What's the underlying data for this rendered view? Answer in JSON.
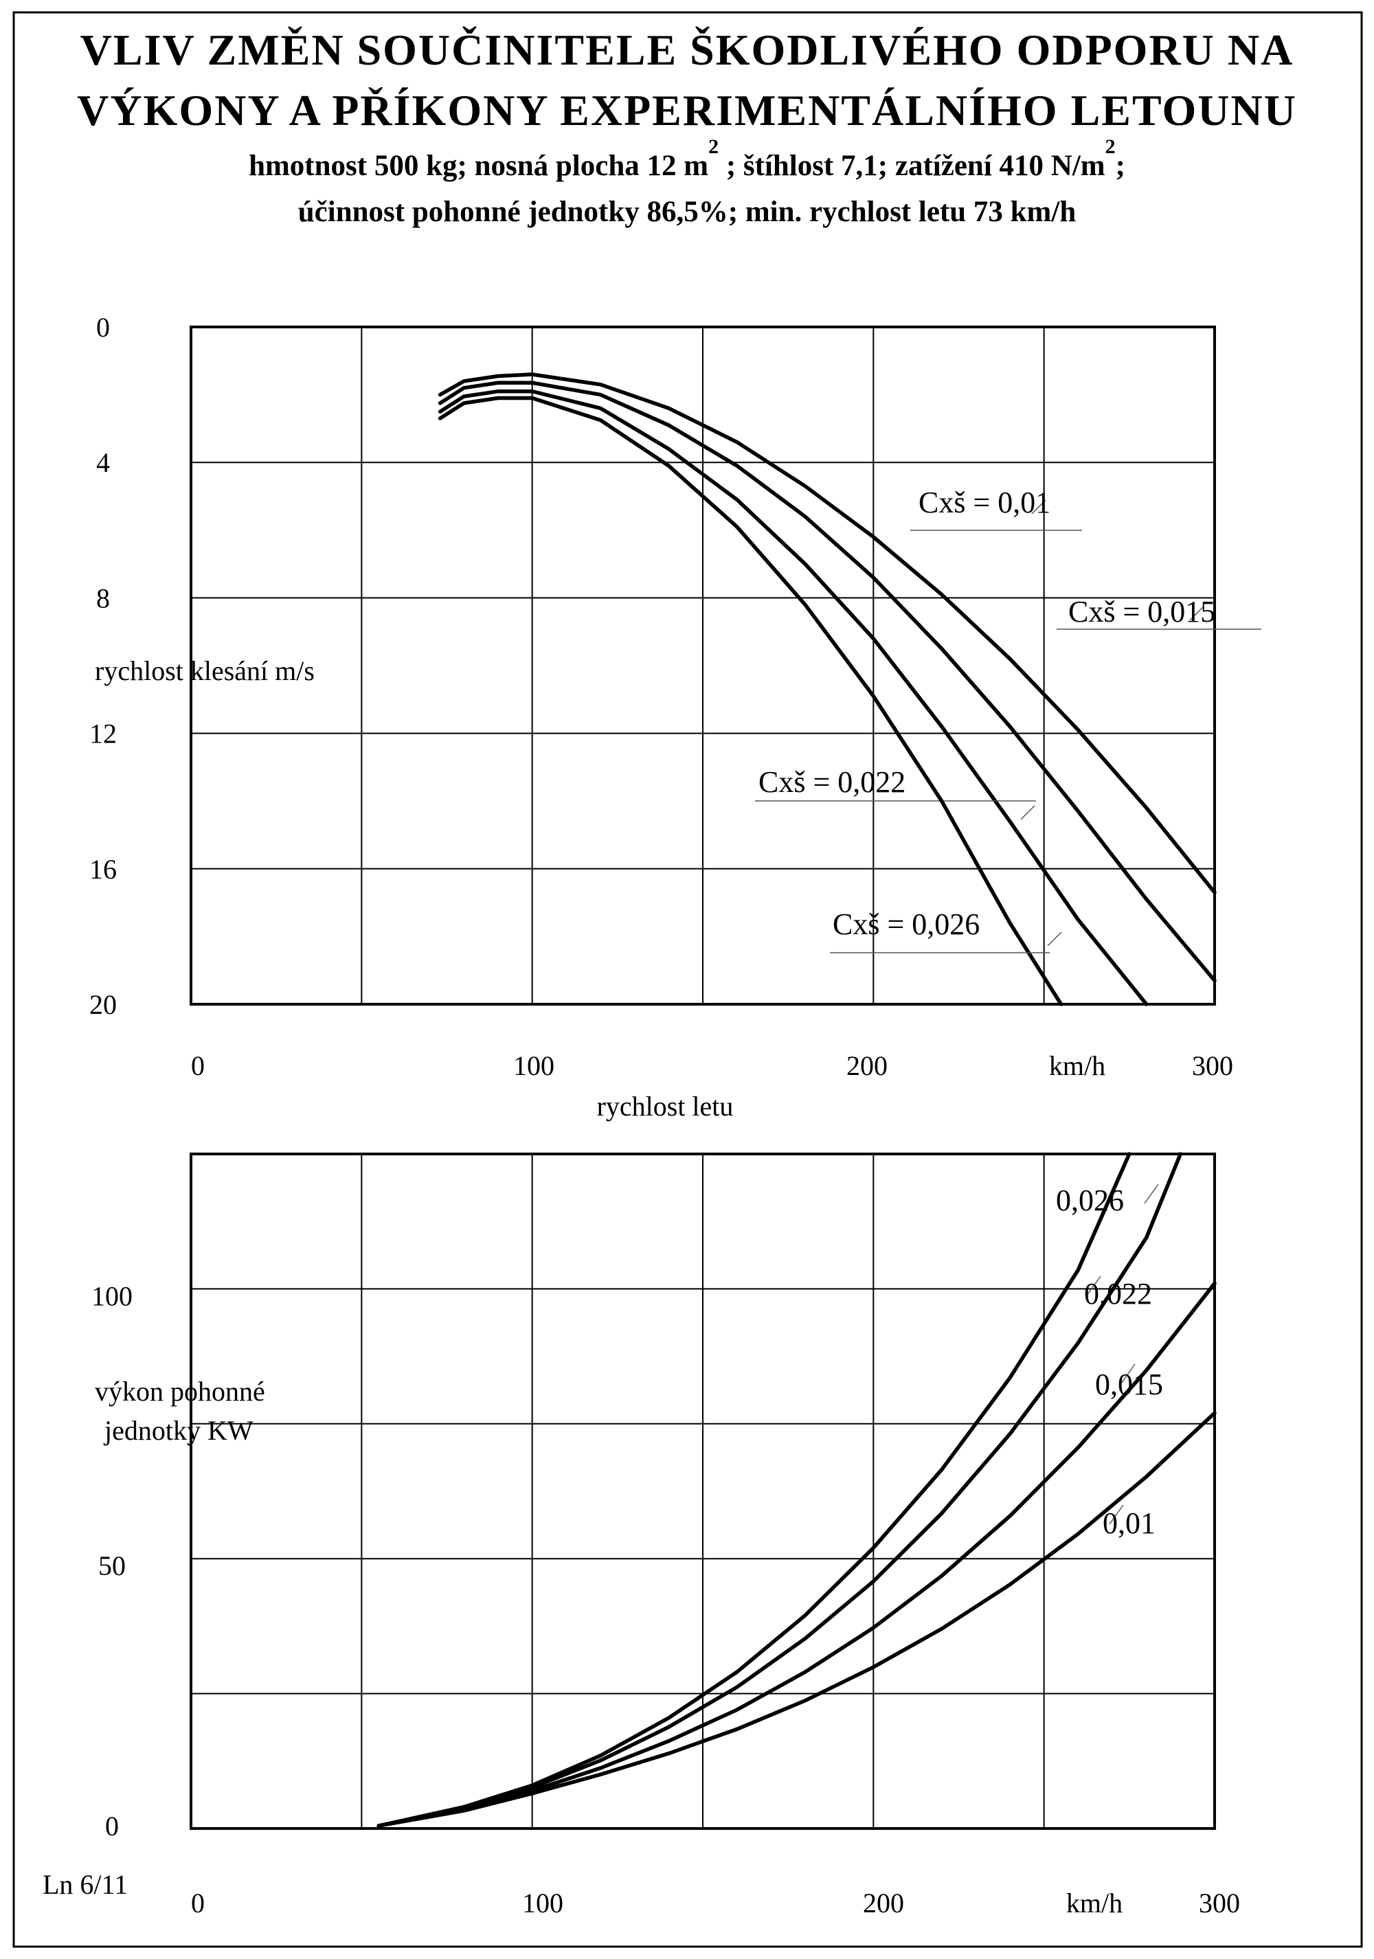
{
  "title_line1": "VLIV ZMĚN SOUČINITELE ŠKODLIVÉHO ODPORU NA",
  "title_line2": "VÝKONY A PŘÍKONY EXPERIMENTÁLNÍHO LETOUNU",
  "subtitle": {
    "line1_a": "hmotnost  500 kg; nosná plocha 12 m",
    "line1_sup1": "2",
    "line1_b": " ; štíhlost  7,1; zatížení  410 N/m",
    "line1_sup2": "2",
    "line1_c": ";",
    "line2": "účinnost pohonné jednotky  86,5%;  min. rychlost letu   73 km/h"
  },
  "footer_code": "Ln 6/11",
  "chart_data": [
    {
      "type": "line",
      "xlabel": "rychlost letu",
      "x_unit": "km/h",
      "ylabel": "rychlost klesání   m/s",
      "xlim": [
        0,
        300
      ],
      "ylim": [
        0,
        20
      ],
      "y_inverted": true,
      "grid": true,
      "x_ticks": [
        "0",
        "100",
        "200",
        "km/h",
        "300"
      ],
      "y_ticks": [
        "0",
        "4",
        "8",
        "12",
        "16",
        "20"
      ],
      "series": [
        {
          "name": "Cxš = 0,01",
          "x": [
            73,
            80,
            90,
            100,
            120,
            140,
            160,
            180,
            200,
            220,
            240,
            260,
            280,
            300
          ],
          "y": [
            2.0,
            1.6,
            1.45,
            1.4,
            1.7,
            2.4,
            3.4,
            4.7,
            6.2,
            7.9,
            9.8,
            11.9,
            14.2,
            16.7
          ]
        },
        {
          "name": "Cxš = 0,015",
          "x": [
            73,
            80,
            90,
            100,
            120,
            140,
            160,
            180,
            200,
            220,
            240,
            260,
            280,
            300
          ],
          "y": [
            2.25,
            1.8,
            1.65,
            1.65,
            2.0,
            2.9,
            4.1,
            5.6,
            7.4,
            9.5,
            11.8,
            14.3,
            16.9,
            19.3
          ]
        },
        {
          "name": "Cxš = 0,022",
          "x": [
            73,
            80,
            90,
            100,
            120,
            140,
            160,
            180,
            200,
            220,
            240,
            260,
            280
          ],
          "y": [
            2.5,
            2.05,
            1.9,
            1.9,
            2.4,
            3.6,
            5.1,
            7.0,
            9.2,
            11.8,
            14.6,
            17.5,
            20.0
          ]
        },
        {
          "name": "Cxš = 0,026",
          "x": [
            73,
            80,
            90,
            100,
            120,
            140,
            160,
            180,
            200,
            220,
            240,
            255
          ],
          "y": [
            2.7,
            2.25,
            2.1,
            2.1,
            2.75,
            4.1,
            5.9,
            8.2,
            10.9,
            14.0,
            17.6,
            20.0
          ]
        }
      ]
    },
    {
      "type": "line",
      "xlabel": "",
      "x_unit": "km/h",
      "ylabel": "výkon pohonné jednotky   KW",
      "xlim": [
        0,
        300
      ],
      "ylim": [
        0,
        125
      ],
      "grid": true,
      "x_ticks": [
        "0",
        "100",
        "200",
        "km/h",
        "300"
      ],
      "y_ticks": [
        "0",
        "50",
        "100"
      ],
      "series": [
        {
          "name": "0,01",
          "x": [
            55,
            80,
            100,
            120,
            140,
            160,
            180,
            200,
            220,
            240,
            260,
            280,
            300
          ],
          "y": [
            0.5,
            3.3,
            6.5,
            10.0,
            13.9,
            18.4,
            23.7,
            29.9,
            37.0,
            45.2,
            54.6,
            65.2,
            77.0
          ]
        },
        {
          "name": "0,015",
          "x": [
            55,
            80,
            100,
            120,
            140,
            160,
            180,
            200,
            220,
            240,
            260,
            280,
            300
          ],
          "y": [
            0.5,
            3.5,
            7.0,
            11.2,
            16.2,
            22.0,
            29.0,
            37.2,
            46.8,
            57.9,
            70.6,
            84.9,
            101.0
          ]
        },
        {
          "name": "0,022",
          "x": [
            55,
            80,
            100,
            120,
            140,
            160,
            180,
            200,
            220,
            240,
            260,
            280,
            290
          ],
          "y": [
            0.5,
            3.8,
            7.6,
            12.6,
            18.8,
            26.2,
            35.2,
            45.8,
            58.4,
            73.1,
            90.0,
            109.5,
            125.0
          ]
        },
        {
          "name": "0,026",
          "x": [
            55,
            80,
            100,
            120,
            140,
            160,
            180,
            200,
            220,
            240,
            260,
            275
          ],
          "y": [
            0.5,
            4.0,
            8.0,
            13.5,
            20.5,
            29.0,
            39.5,
            52.0,
            66.5,
            83.5,
            103.5,
            125.0
          ]
        }
      ]
    }
  ]
}
